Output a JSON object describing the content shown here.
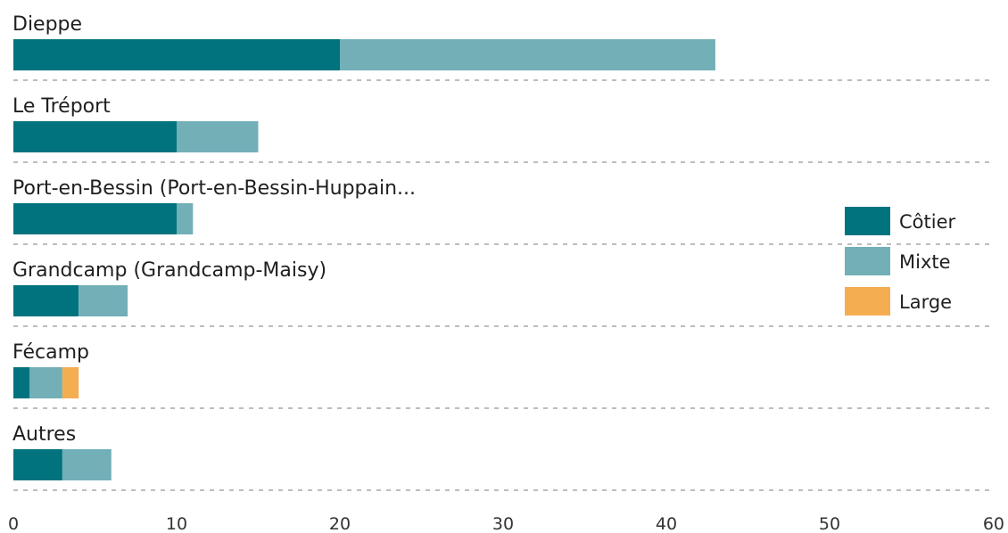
{
  "chart_data": {
    "type": "bar",
    "orientation": "horizontal",
    "stacked": true,
    "categories": [
      "Dieppe",
      "Le Tréport",
      "Port-en-Bessin (Port-en-Bessin-Huppain...",
      "Grandcamp (Grandcamp-Maisy)",
      "Fécamp",
      "Autres"
    ],
    "series": [
      {
        "name": "Côtier",
        "color": "#00737f",
        "values": [
          20,
          10,
          10,
          4,
          1,
          3
        ]
      },
      {
        "name": "Mixte",
        "color": "#72afb7",
        "values": [
          23,
          5,
          1,
          3,
          2,
          3
        ]
      },
      {
        "name": "Large",
        "color": "#f5ad52",
        "values": [
          0,
          0,
          0,
          0,
          1,
          0
        ]
      }
    ],
    "xlim": [
      0,
      60
    ],
    "xticks": [
      "0",
      "10",
      "20",
      "30",
      "40",
      "50",
      "60"
    ],
    "xtick_values": [
      0,
      10,
      20,
      30,
      40,
      50,
      60
    ],
    "legend_position": "right",
    "gridlines": "dotted separators between categories"
  }
}
